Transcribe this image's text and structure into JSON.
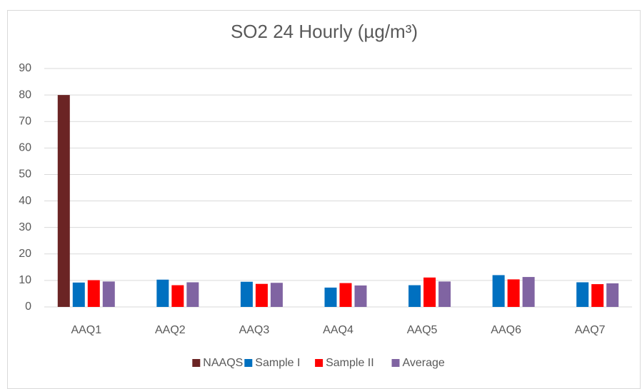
{
  "chart_data": {
    "type": "bar",
    "title": "SO2 24 Hourly (µg/m³)",
    "categories": [
      "AAQ1",
      "AAQ2",
      "AAQ3",
      "AAQ4",
      "AAQ5",
      "AAQ6",
      "AAQ7"
    ],
    "series": [
      {
        "name": "NAAQS",
        "color": "#6b2424",
        "values": [
          80,
          null,
          null,
          null,
          null,
          null,
          null
        ]
      },
      {
        "name": "Sample I",
        "color": "#0070c0",
        "values": [
          9.2,
          10.3,
          9.5,
          7.3,
          8.2,
          12.0,
          9.3
        ]
      },
      {
        "name": "Sample II",
        "color": "#ff0000",
        "values": [
          10.1,
          8.2,
          8.7,
          9.0,
          11.1,
          10.4,
          8.6
        ]
      },
      {
        "name": "Average",
        "color": "#8064a2",
        "values": [
          9.6,
          9.3,
          9.1,
          8.1,
          9.6,
          11.3,
          8.9
        ]
      }
    ],
    "ylim": [
      0,
      90
    ],
    "yticks": [
      0,
      10,
      20,
      30,
      40,
      50,
      60,
      70,
      80,
      90
    ],
    "grid": true,
    "legend": "bottom"
  }
}
